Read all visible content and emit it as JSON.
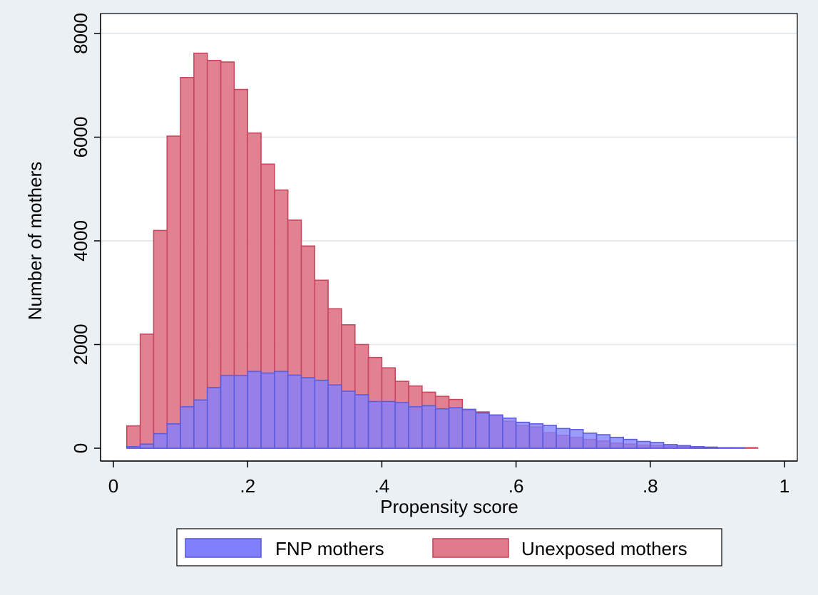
{
  "chart_data": {
    "type": "bar",
    "xlabel": "Propensity score",
    "ylabel": "Number of mothers",
    "xlim": [
      0,
      1
    ],
    "ylim": [
      0,
      8000
    ],
    "xticks": [
      0,
      0.2,
      0.4,
      0.6,
      0.8,
      1
    ],
    "xtick_labels": [
      "0",
      ".2",
      ".4",
      ".6",
      ".8",
      "1"
    ],
    "yticks": [
      0,
      2000,
      4000,
      6000,
      8000
    ],
    "ytick_labels": [
      "0",
      "2000",
      "4000",
      "6000",
      "8000"
    ],
    "grid": true,
    "legend_position": "bottom",
    "bin_width": 0.02,
    "series": [
      {
        "name": "FNP mothers",
        "color": "#8080ff",
        "edge_color": "#5b5be0",
        "bins": [
          [
            0.02,
            30
          ],
          [
            0.04,
            80
          ],
          [
            0.06,
            280
          ],
          [
            0.08,
            470
          ],
          [
            0.1,
            800
          ],
          [
            0.12,
            930
          ],
          [
            0.14,
            1170
          ],
          [
            0.16,
            1400
          ],
          [
            0.18,
            1400
          ],
          [
            0.2,
            1480
          ],
          [
            0.22,
            1450
          ],
          [
            0.24,
            1480
          ],
          [
            0.26,
            1410
          ],
          [
            0.28,
            1360
          ],
          [
            0.3,
            1310
          ],
          [
            0.32,
            1220
          ],
          [
            0.34,
            1100
          ],
          [
            0.36,
            1030
          ],
          [
            0.38,
            900
          ],
          [
            0.4,
            900
          ],
          [
            0.42,
            880
          ],
          [
            0.44,
            800
          ],
          [
            0.46,
            820
          ],
          [
            0.48,
            760
          ],
          [
            0.5,
            780
          ],
          [
            0.52,
            750
          ],
          [
            0.54,
            680
          ],
          [
            0.56,
            640
          ],
          [
            0.58,
            580
          ],
          [
            0.6,
            500
          ],
          [
            0.62,
            470
          ],
          [
            0.64,
            440
          ],
          [
            0.66,
            380
          ],
          [
            0.68,
            360
          ],
          [
            0.7,
            290
          ],
          [
            0.72,
            260
          ],
          [
            0.74,
            210
          ],
          [
            0.76,
            170
          ],
          [
            0.78,
            130
          ],
          [
            0.8,
            110
          ],
          [
            0.82,
            70
          ],
          [
            0.84,
            50
          ],
          [
            0.86,
            30
          ],
          [
            0.88,
            20
          ],
          [
            0.9,
            10
          ],
          [
            0.92,
            10
          ]
        ]
      },
      {
        "name": "Unexposed mothers",
        "color": "#e07a8c",
        "edge_color": "#c8475c",
        "bins": [
          [
            0.02,
            430
          ],
          [
            0.04,
            2200
          ],
          [
            0.06,
            4200
          ],
          [
            0.08,
            6020
          ],
          [
            0.1,
            7150
          ],
          [
            0.12,
            7620
          ],
          [
            0.14,
            7480
          ],
          [
            0.16,
            7450
          ],
          [
            0.18,
            6920
          ],
          [
            0.2,
            6080
          ],
          [
            0.22,
            5480
          ],
          [
            0.24,
            4980
          ],
          [
            0.26,
            4400
          ],
          [
            0.28,
            3900
          ],
          [
            0.3,
            3240
          ],
          [
            0.32,
            2690
          ],
          [
            0.34,
            2380
          ],
          [
            0.36,
            2000
          ],
          [
            0.38,
            1750
          ],
          [
            0.4,
            1550
          ],
          [
            0.42,
            1290
          ],
          [
            0.44,
            1200
          ],
          [
            0.46,
            1080
          ],
          [
            0.48,
            1000
          ],
          [
            0.5,
            940
          ],
          [
            0.52,
            730
          ],
          [
            0.54,
            700
          ],
          [
            0.56,
            640
          ],
          [
            0.58,
            520
          ],
          [
            0.6,
            440
          ],
          [
            0.62,
            410
          ],
          [
            0.64,
            300
          ],
          [
            0.66,
            250
          ],
          [
            0.68,
            210
          ],
          [
            0.7,
            170
          ],
          [
            0.72,
            140
          ],
          [
            0.74,
            100
          ],
          [
            0.76,
            80
          ],
          [
            0.78,
            60
          ],
          [
            0.8,
            50
          ],
          [
            0.82,
            40
          ],
          [
            0.84,
            30
          ],
          [
            0.86,
            20
          ],
          [
            0.88,
            20
          ],
          [
            0.9,
            10
          ],
          [
            0.92,
            10
          ],
          [
            0.94,
            10
          ]
        ]
      }
    ]
  }
}
